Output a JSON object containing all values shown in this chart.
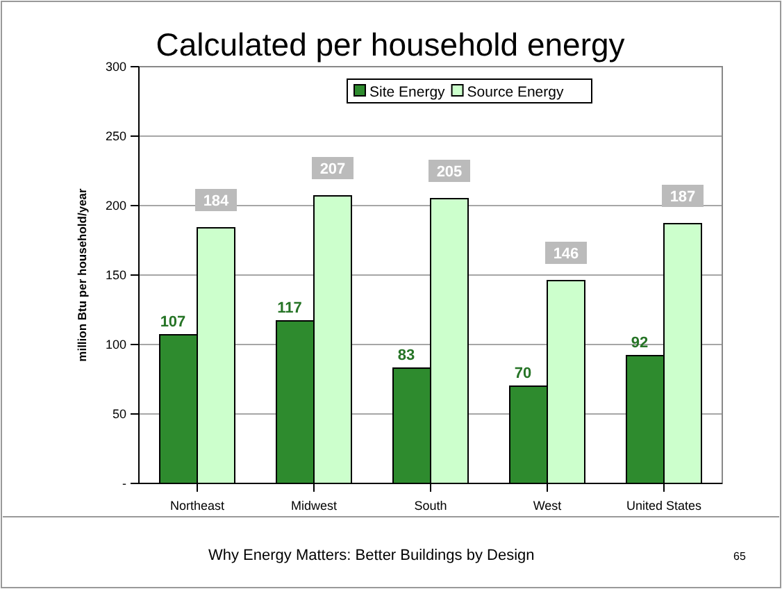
{
  "chart_data": {
    "type": "bar",
    "title": "Calculated per household energy",
    "ylabel": "million Btu per household/year",
    "categories": [
      "Northeast",
      "Midwest",
      "South",
      "West",
      "United States"
    ],
    "series": [
      {
        "name": "Site Energy",
        "color": "#2e8b2e",
        "values": [
          107,
          117,
          83,
          70,
          92
        ]
      },
      {
        "name": "Source Energy",
        "color": "#ccffcc",
        "values": [
          184,
          207,
          205,
          146,
          187
        ]
      }
    ],
    "ylim": [
      0,
      300
    ],
    "yticks": [
      {
        "value": 0,
        "label": "-"
      },
      50,
      100,
      150,
      200,
      250,
      300
    ],
    "grid": "y",
    "legend": "top",
    "data_labels": true,
    "annotations": [
      "Why Energy Matters: Better Buildings by Design",
      "65"
    ]
  }
}
